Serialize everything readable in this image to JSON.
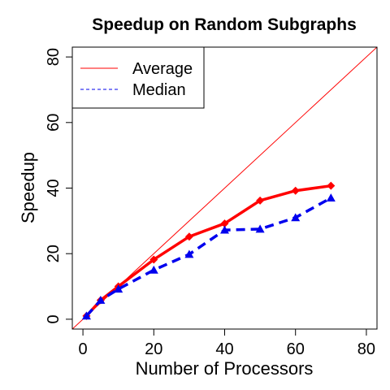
{
  "chart_data": {
    "type": "line",
    "title": "Speedup on Random Subgraphs",
    "xlabel": "Number of Processors",
    "ylabel": "Speedup",
    "xlim": [
      -3,
      83
    ],
    "ylim": [
      -3,
      83
    ],
    "xticks": [
      0,
      20,
      40,
      60,
      80
    ],
    "yticks": [
      0,
      20,
      40,
      60,
      80
    ],
    "legend_position": "top-left",
    "reference_line": {
      "x": [
        -3,
        83
      ],
      "y": [
        -3,
        83
      ],
      "color": "#ff0000"
    },
    "series": [
      {
        "name": "Average",
        "color": "#ff0000",
        "style": "solid",
        "marker": "diamond",
        "x": [
          1,
          5,
          10,
          20,
          30,
          40,
          50,
          60,
          70
        ],
        "y": [
          1,
          5.8,
          10,
          18.2,
          25.2,
          29.2,
          36.2,
          39.2,
          40.7
        ]
      },
      {
        "name": "Median",
        "color": "#0000ee",
        "style": "dashed",
        "marker": "triangle",
        "x": [
          1,
          5,
          10,
          20,
          30,
          40,
          50,
          60,
          70
        ],
        "y": [
          1,
          5.8,
          9.2,
          15,
          19.8,
          27.2,
          27.5,
          31,
          37
        ]
      }
    ]
  }
}
